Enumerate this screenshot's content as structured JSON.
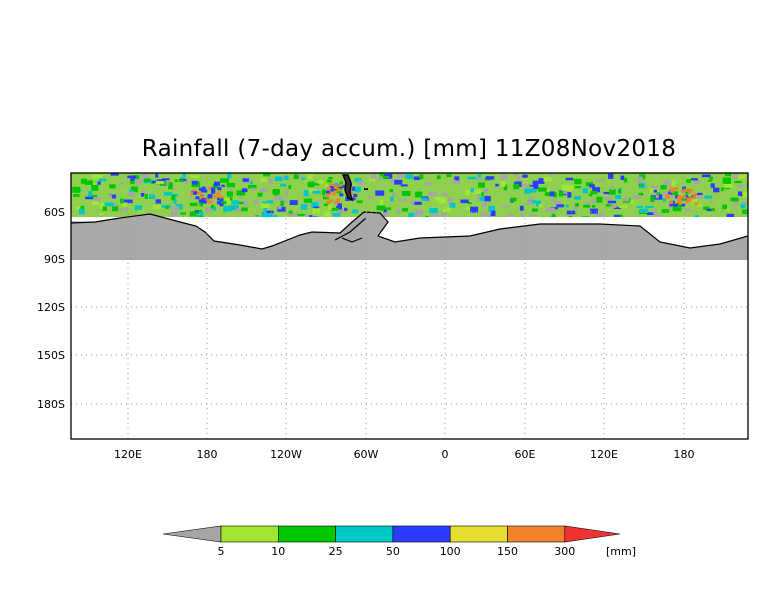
{
  "title": "Rainfall (7-day accum.) [mm] 11Z08Nov2018",
  "map": {
    "lat_ticks": [
      "60S",
      "90S",
      "120S",
      "150S",
      "180S"
    ],
    "lon_ticks": [
      "120E",
      "180",
      "120W",
      "60W",
      "0",
      "60E",
      "120E",
      "180"
    ],
    "grid": "dotted",
    "land_color": "#a9a9a9"
  },
  "colorbar": {
    "unit": "[mm]",
    "thresholds": [
      "5",
      "10",
      "25",
      "50",
      "100",
      "150",
      "300"
    ],
    "colors": [
      "#a6a6a6",
      "#a0e632",
      "#00c800",
      "#00c8c8",
      "#2a3cff",
      "#e6dc32",
      "#f08228",
      "#f03232"
    ]
  }
}
